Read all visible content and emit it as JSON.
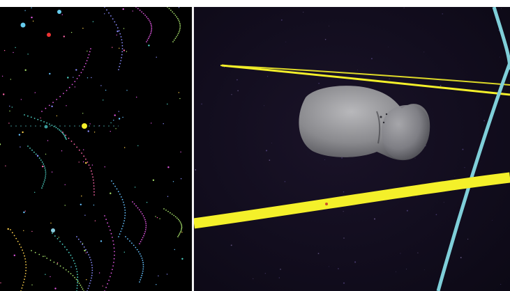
{
  "colors": {
    "background": "#000000",
    "space": "#140f22",
    "orbit_yellow": "#f4f02a",
    "orbit_cyan": "#7fcfd9",
    "asteroid": "#8c8c8f",
    "dot_palette": [
      "#e056e0",
      "#4fd6c8",
      "#8a8cff",
      "#a6e06a",
      "#ff66aa",
      "#66c2ff",
      "#ffd24d"
    ]
  },
  "left_view": {
    "name": "solar-system-overview",
    "sun_color": "#f4f02a",
    "planet_colors": [
      "#66ccee",
      "#ee3333",
      "#66ccee",
      "#88ccdd"
    ]
  },
  "right_view": {
    "name": "asteroid-closeup",
    "icons": [
      "asteroid-icon",
      "orbit-path-icon"
    ]
  }
}
